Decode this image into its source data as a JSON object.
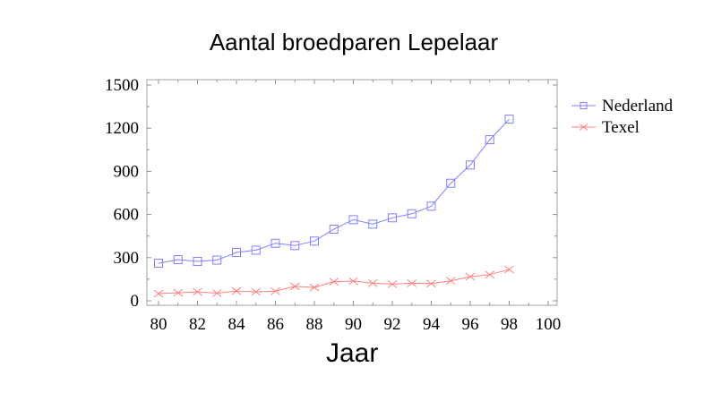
{
  "chart_data": {
    "type": "line",
    "title": "Aantal broedparen Lepelaar",
    "xlabel": "Jaar",
    "ylabel": "",
    "xlim": [
      79.4,
      100.5
    ],
    "ylim": [
      -30,
      1530
    ],
    "x_ticks": [
      80,
      82,
      84,
      86,
      88,
      90,
      92,
      94,
      96,
      98,
      100
    ],
    "y_ticks": [
      0,
      300,
      600,
      900,
      1200,
      1500
    ],
    "grid": false,
    "legend_position": "right",
    "x": [
      80,
      81,
      82,
      83,
      84,
      85,
      86,
      87,
      88,
      89,
      90,
      91,
      92,
      93,
      94,
      95,
      96,
      97,
      98
    ],
    "series": [
      {
        "name": "Nederland",
        "color": "#8080ff",
        "marker": "square",
        "values": [
          261,
          286,
          274,
          283,
          336,
          352,
          400,
          384,
          415,
          498,
          564,
          533,
          577,
          605,
          658,
          817,
          944,
          1120,
          1263
        ]
      },
      {
        "name": "Texel",
        "color": "#ff8080",
        "marker": "x",
        "values": [
          50,
          56,
          62,
          53,
          68,
          62,
          67,
          100,
          93,
          133,
          137,
          122,
          116,
          122,
          120,
          139,
          168,
          182,
          218
        ]
      }
    ]
  }
}
